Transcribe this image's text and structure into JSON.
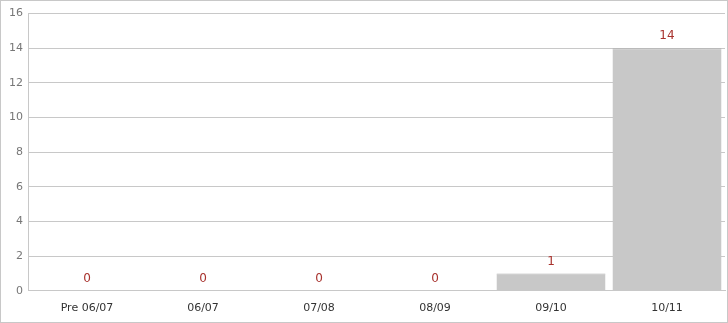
{
  "chart_data": {
    "type": "bar",
    "categories": [
      "Pre 06/07",
      "06/07",
      "07/08",
      "08/09",
      "09/10",
      "10/11"
    ],
    "values": [
      0,
      0,
      0,
      0,
      1,
      14
    ],
    "color": "#c8c8c8",
    "ylim": [
      0,
      16
    ],
    "yticks": [
      0,
      2,
      4,
      6,
      8,
      10,
      12,
      14,
      16
    ],
    "grid": true,
    "data_labels": true
  }
}
